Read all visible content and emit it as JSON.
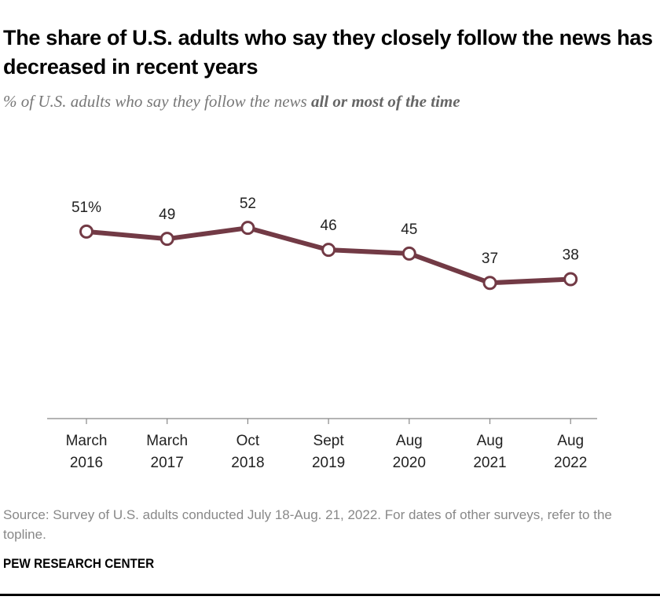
{
  "title": "The share of U.S. adults who say they closely follow the news has decreased in recent years",
  "subtitle_prefix": "% of U.S. adults who say they follow the news ",
  "subtitle_emphasis": "all or most of the time",
  "source": "Source: Survey of U.S. adults conducted July 18-Aug. 21, 2022. For dates of other surveys, refer to the topline.",
  "brand": "PEW RESEARCH CENTER",
  "colors": {
    "line": "#723a45"
  },
  "chart_data": {
    "type": "line",
    "title": "The share of U.S. adults who say they closely follow the news has decreased in recent years",
    "xlabel": "",
    "ylabel": "",
    "ylim": [
      0,
      100
    ],
    "grid": false,
    "categories": [
      [
        "March",
        "2016"
      ],
      [
        "March",
        "2017"
      ],
      [
        "Oct",
        "2018"
      ],
      [
        "Sept",
        "2019"
      ],
      [
        "Aug",
        "2020"
      ],
      [
        "Aug",
        "2021"
      ],
      [
        "Aug",
        "2022"
      ]
    ],
    "series": [
      {
        "name": "All or most of the time",
        "values": [
          51,
          49,
          52,
          46,
          45,
          37,
          38
        ]
      }
    ],
    "data_labels": [
      "51%",
      "49",
      "52",
      "46",
      "45",
      "37",
      "38"
    ]
  }
}
